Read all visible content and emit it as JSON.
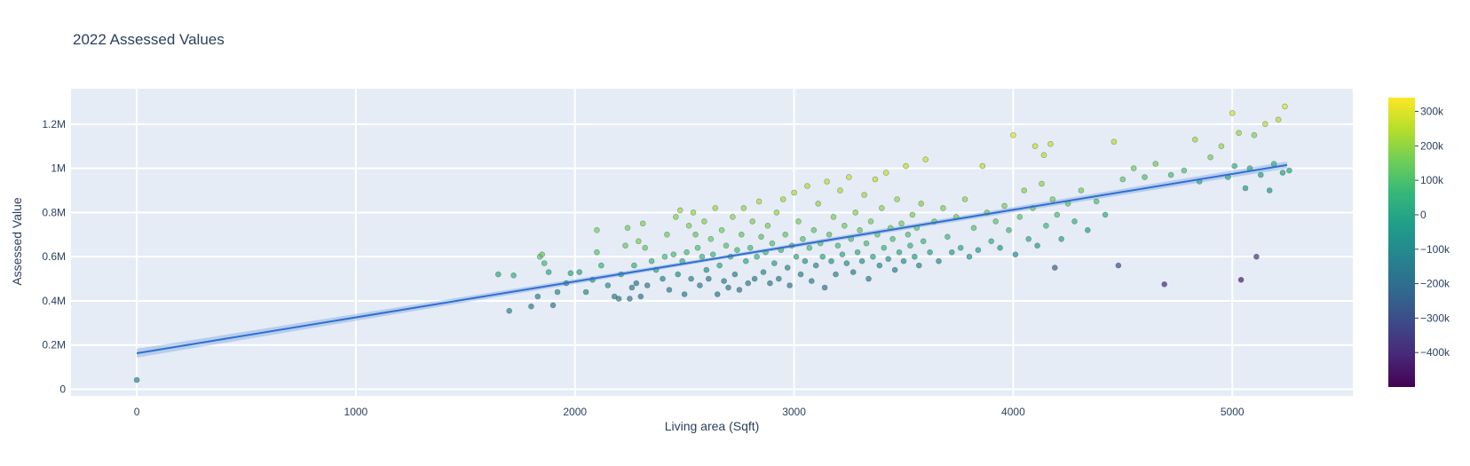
{
  "chart_data": {
    "type": "scatter",
    "title": "2022 Assessed Values",
    "xlabel": "Living area (Sqft)",
    "ylabel": "Assessed Value",
    "xlim": [
      -300,
      5550
    ],
    "ylim": [
      -30000,
      1360000
    ],
    "x_ticks": [
      0,
      1000,
      2000,
      3000,
      4000,
      5000
    ],
    "x_tick_labels": [
      "0",
      "1000",
      "2000",
      "3000",
      "4000",
      "5000"
    ],
    "y_ticks": [
      0,
      200000,
      400000,
      600000,
      800000,
      1000000,
      1200000
    ],
    "y_tick_labels": [
      "0",
      "0.2M",
      "0.4M",
      "0.6M",
      "0.8M",
      "1M",
      "1.2M"
    ],
    "grid": true,
    "trendline": {
      "type": "linear",
      "x0": 0,
      "y0": 163000,
      "x1": 5250,
      "y1": 1015000,
      "band_at_x0": 20000,
      "band_at_mid": 8000,
      "band_at_x1": 16000,
      "color": "#2f6fd1"
    },
    "colorbar": {
      "title": "",
      "colorscale": "Viridis",
      "cmin": -500000,
      "cmax": 340000,
      "ticks": [
        300000,
        200000,
        100000,
        0,
        -100000,
        -200000,
        -300000,
        -400000
      ],
      "tick_labels": [
        "300k",
        "200k",
        "100k",
        "0",
        "−100k",
        "−200k",
        "−300k",
        "−400k"
      ]
    },
    "points": [
      {
        "x": 0,
        "y": 42000,
        "c": -120000
      },
      {
        "x": 1650,
        "y": 520000,
        "c": 20000
      },
      {
        "x": 1700,
        "y": 355000,
        "c": -110000
      },
      {
        "x": 1720,
        "y": 515000,
        "c": 40000
      },
      {
        "x": 1800,
        "y": 375000,
        "c": -150000
      },
      {
        "x": 1830,
        "y": 420000,
        "c": -120000
      },
      {
        "x": 1840,
        "y": 600000,
        "c": 120000
      },
      {
        "x": 1850,
        "y": 610000,
        "c": 130000
      },
      {
        "x": 1860,
        "y": 570000,
        "c": 80000
      },
      {
        "x": 1880,
        "y": 530000,
        "c": 20000
      },
      {
        "x": 1900,
        "y": 380000,
        "c": -160000
      },
      {
        "x": 1920,
        "y": 440000,
        "c": -90000
      },
      {
        "x": 1960,
        "y": 480000,
        "c": -60000
      },
      {
        "x": 1980,
        "y": 525000,
        "c": 10000
      },
      {
        "x": 2020,
        "y": 530000,
        "c": 20000
      },
      {
        "x": 2050,
        "y": 440000,
        "c": -90000
      },
      {
        "x": 2080,
        "y": 495000,
        "c": -30000
      },
      {
        "x": 2100,
        "y": 720000,
        "c": 160000
      },
      {
        "x": 2100,
        "y": 620000,
        "c": 120000
      },
      {
        "x": 2120,
        "y": 560000,
        "c": 60000
      },
      {
        "x": 2150,
        "y": 470000,
        "c": -70000
      },
      {
        "x": 2180,
        "y": 420000,
        "c": -140000
      },
      {
        "x": 2200,
        "y": 410000,
        "c": -160000
      },
      {
        "x": 2210,
        "y": 520000,
        "c": 0
      },
      {
        "x": 2230,
        "y": 650000,
        "c": 140000
      },
      {
        "x": 2240,
        "y": 730000,
        "c": 150000
      },
      {
        "x": 2250,
        "y": 410000,
        "c": -170000
      },
      {
        "x": 2260,
        "y": 460000,
        "c": -140000
      },
      {
        "x": 2270,
        "y": 560000,
        "c": 50000
      },
      {
        "x": 2280,
        "y": 480000,
        "c": -150000
      },
      {
        "x": 2290,
        "y": 670000,
        "c": 160000
      },
      {
        "x": 2300,
        "y": 420000,
        "c": -170000
      },
      {
        "x": 2310,
        "y": 750000,
        "c": 170000
      },
      {
        "x": 2320,
        "y": 640000,
        "c": 130000
      },
      {
        "x": 2330,
        "y": 470000,
        "c": -160000
      },
      {
        "x": 2350,
        "y": 580000,
        "c": 60000
      },
      {
        "x": 2370,
        "y": 540000,
        "c": 0
      },
      {
        "x": 2400,
        "y": 500000,
        "c": -110000
      },
      {
        "x": 2410,
        "y": 600000,
        "c": 80000
      },
      {
        "x": 2420,
        "y": 700000,
        "c": 150000
      },
      {
        "x": 2430,
        "y": 450000,
        "c": -150000
      },
      {
        "x": 2450,
        "y": 610000,
        "c": 90000
      },
      {
        "x": 2460,
        "y": 780000,
        "c": 180000
      },
      {
        "x": 2470,
        "y": 520000,
        "c": -80000
      },
      {
        "x": 2480,
        "y": 810000,
        "c": 210000
      },
      {
        "x": 2490,
        "y": 580000,
        "c": 40000
      },
      {
        "x": 2500,
        "y": 430000,
        "c": -150000
      },
      {
        "x": 2510,
        "y": 620000,
        "c": 90000
      },
      {
        "x": 2520,
        "y": 740000,
        "c": 170000
      },
      {
        "x": 2530,
        "y": 500000,
        "c": -120000
      },
      {
        "x": 2540,
        "y": 800000,
        "c": 200000
      },
      {
        "x": 2550,
        "y": 700000,
        "c": 130000
      },
      {
        "x": 2560,
        "y": 640000,
        "c": 100000
      },
      {
        "x": 2570,
        "y": 470000,
        "c": -140000
      },
      {
        "x": 2580,
        "y": 600000,
        "c": 60000
      },
      {
        "x": 2590,
        "y": 760000,
        "c": 180000
      },
      {
        "x": 2600,
        "y": 540000,
        "c": -60000
      },
      {
        "x": 2610,
        "y": 500000,
        "c": -150000
      },
      {
        "x": 2620,
        "y": 680000,
        "c": 140000
      },
      {
        "x": 2630,
        "y": 610000,
        "c": 70000
      },
      {
        "x": 2640,
        "y": 820000,
        "c": 210000
      },
      {
        "x": 2650,
        "y": 430000,
        "c": -170000
      },
      {
        "x": 2660,
        "y": 560000,
        "c": 20000
      },
      {
        "x": 2670,
        "y": 720000,
        "c": 150000
      },
      {
        "x": 2680,
        "y": 490000,
        "c": -140000
      },
      {
        "x": 2690,
        "y": 650000,
        "c": 110000
      },
      {
        "x": 2700,
        "y": 460000,
        "c": -160000
      },
      {
        "x": 2710,
        "y": 600000,
        "c": 50000
      },
      {
        "x": 2720,
        "y": 780000,
        "c": 190000
      },
      {
        "x": 2730,
        "y": 520000,
        "c": -130000
      },
      {
        "x": 2740,
        "y": 630000,
        "c": 80000
      },
      {
        "x": 2750,
        "y": 450000,
        "c": -170000
      },
      {
        "x": 2760,
        "y": 700000,
        "c": 130000
      },
      {
        "x": 2770,
        "y": 820000,
        "c": 200000
      },
      {
        "x": 2780,
        "y": 580000,
        "c": 20000
      },
      {
        "x": 2790,
        "y": 480000,
        "c": -150000
      },
      {
        "x": 2800,
        "y": 640000,
        "c": 90000
      },
      {
        "x": 2810,
        "y": 760000,
        "c": 170000
      },
      {
        "x": 2820,
        "y": 500000,
        "c": -140000
      },
      {
        "x": 2830,
        "y": 600000,
        "c": 40000
      },
      {
        "x": 2840,
        "y": 850000,
        "c": 230000
      },
      {
        "x": 2850,
        "y": 690000,
        "c": 120000
      },
      {
        "x": 2860,
        "y": 530000,
        "c": -110000
      },
      {
        "x": 2870,
        "y": 620000,
        "c": 70000
      },
      {
        "x": 2880,
        "y": 740000,
        "c": 160000
      },
      {
        "x": 2890,
        "y": 480000,
        "c": -150000
      },
      {
        "x": 2900,
        "y": 660000,
        "c": 100000
      },
      {
        "x": 2910,
        "y": 570000,
        "c": -20000
      },
      {
        "x": 2920,
        "y": 800000,
        "c": 190000
      },
      {
        "x": 2930,
        "y": 500000,
        "c": -140000
      },
      {
        "x": 2940,
        "y": 630000,
        "c": 70000
      },
      {
        "x": 2950,
        "y": 860000,
        "c": 220000
      },
      {
        "x": 2960,
        "y": 700000,
        "c": 130000
      },
      {
        "x": 2970,
        "y": 550000,
        "c": -90000
      },
      {
        "x": 2980,
        "y": 470000,
        "c": -160000
      },
      {
        "x": 2990,
        "y": 650000,
        "c": 90000
      },
      {
        "x": 3000,
        "y": 890000,
        "c": 230000
      },
      {
        "x": 3010,
        "y": 600000,
        "c": 20000
      },
      {
        "x": 3020,
        "y": 760000,
        "c": 160000
      },
      {
        "x": 3030,
        "y": 520000,
        "c": -120000
      },
      {
        "x": 3040,
        "y": 680000,
        "c": 110000
      },
      {
        "x": 3050,
        "y": 580000,
        "c": -40000
      },
      {
        "x": 3060,
        "y": 920000,
        "c": 240000
      },
      {
        "x": 3070,
        "y": 640000,
        "c": 80000
      },
      {
        "x": 3080,
        "y": 490000,
        "c": -150000
      },
      {
        "x": 3090,
        "y": 720000,
        "c": 130000
      },
      {
        "x": 3100,
        "y": 560000,
        "c": -100000
      },
      {
        "x": 3110,
        "y": 840000,
        "c": 200000
      },
      {
        "x": 3120,
        "y": 660000,
        "c": 100000
      },
      {
        "x": 3130,
        "y": 600000,
        "c": 10000
      },
      {
        "x": 3140,
        "y": 460000,
        "c": -170000
      },
      {
        "x": 3150,
        "y": 940000,
        "c": 250000
      },
      {
        "x": 3160,
        "y": 700000,
        "c": 120000
      },
      {
        "x": 3170,
        "y": 580000,
        "c": -50000
      },
      {
        "x": 3180,
        "y": 780000,
        "c": 170000
      },
      {
        "x": 3190,
        "y": 520000,
        "c": -130000
      },
      {
        "x": 3200,
        "y": 650000,
        "c": 80000
      },
      {
        "x": 3210,
        "y": 900000,
        "c": 230000
      },
      {
        "x": 3220,
        "y": 610000,
        "c": 20000
      },
      {
        "x": 3230,
        "y": 740000,
        "c": 150000
      },
      {
        "x": 3240,
        "y": 570000,
        "c": -80000
      },
      {
        "x": 3250,
        "y": 960000,
        "c": 270000
      },
      {
        "x": 3260,
        "y": 680000,
        "c": 100000
      },
      {
        "x": 3270,
        "y": 530000,
        "c": -140000
      },
      {
        "x": 3280,
        "y": 800000,
        "c": 180000
      },
      {
        "x": 3290,
        "y": 620000,
        "c": 30000
      },
      {
        "x": 3300,
        "y": 720000,
        "c": 130000
      },
      {
        "x": 3310,
        "y": 580000,
        "c": -70000
      },
      {
        "x": 3320,
        "y": 880000,
        "c": 220000
      },
      {
        "x": 3330,
        "y": 660000,
        "c": 90000
      },
      {
        "x": 3340,
        "y": 500000,
        "c": -150000
      },
      {
        "x": 3350,
        "y": 760000,
        "c": 160000
      },
      {
        "x": 3360,
        "y": 600000,
        "c": 0
      },
      {
        "x": 3370,
        "y": 950000,
        "c": 260000
      },
      {
        "x": 3380,
        "y": 700000,
        "c": 110000
      },
      {
        "x": 3390,
        "y": 560000,
        "c": -100000
      },
      {
        "x": 3400,
        "y": 820000,
        "c": 190000
      },
      {
        "x": 3410,
        "y": 640000,
        "c": 60000
      },
      {
        "x": 3420,
        "y": 980000,
        "c": 270000
      },
      {
        "x": 3430,
        "y": 590000,
        "c": -60000
      },
      {
        "x": 3440,
        "y": 730000,
        "c": 140000
      },
      {
        "x": 3450,
        "y": 680000,
        "c": 90000
      },
      {
        "x": 3460,
        "y": 540000,
        "c": -130000
      },
      {
        "x": 3470,
        "y": 860000,
        "c": 200000
      },
      {
        "x": 3480,
        "y": 620000,
        "c": 20000
      },
      {
        "x": 3490,
        "y": 750000,
        "c": 150000
      },
      {
        "x": 3500,
        "y": 580000,
        "c": -80000
      },
      {
        "x": 3510,
        "y": 1010000,
        "c": 260000
      },
      {
        "x": 3520,
        "y": 700000,
        "c": 100000
      },
      {
        "x": 3530,
        "y": 650000,
        "c": 50000
      },
      {
        "x": 3540,
        "y": 790000,
        "c": 170000
      },
      {
        "x": 3550,
        "y": 600000,
        "c": -30000
      },
      {
        "x": 3560,
        "y": 730000,
        "c": 120000
      },
      {
        "x": 3570,
        "y": 560000,
        "c": -110000
      },
      {
        "x": 3580,
        "y": 840000,
        "c": 180000
      },
      {
        "x": 3590,
        "y": 670000,
        "c": 60000
      },
      {
        "x": 3600,
        "y": 1040000,
        "c": 270000
      },
      {
        "x": 3620,
        "y": 620000,
        "c": -10000
      },
      {
        "x": 3640,
        "y": 760000,
        "c": 140000
      },
      {
        "x": 3660,
        "y": 580000,
        "c": -90000
      },
      {
        "x": 3680,
        "y": 820000,
        "c": 170000
      },
      {
        "x": 3700,
        "y": 690000,
        "c": 70000
      },
      {
        "x": 3720,
        "y": 620000,
        "c": -20000
      },
      {
        "x": 3740,
        "y": 780000,
        "c": 150000
      },
      {
        "x": 3760,
        "y": 640000,
        "c": 10000
      },
      {
        "x": 3780,
        "y": 860000,
        "c": 190000
      },
      {
        "x": 3800,
        "y": 600000,
        "c": -60000
      },
      {
        "x": 3820,
        "y": 730000,
        "c": 110000
      },
      {
        "x": 3840,
        "y": 630000,
        "c": -20000
      },
      {
        "x": 3860,
        "y": 1010000,
        "c": 250000
      },
      {
        "x": 3880,
        "y": 800000,
        "c": 150000
      },
      {
        "x": 3900,
        "y": 670000,
        "c": 40000
      },
      {
        "x": 3920,
        "y": 760000,
        "c": 120000
      },
      {
        "x": 3940,
        "y": 640000,
        "c": -30000
      },
      {
        "x": 3960,
        "y": 830000,
        "c": 160000
      },
      {
        "x": 3980,
        "y": 720000,
        "c": 80000
      },
      {
        "x": 4000,
        "y": 1150000,
        "c": 290000
      },
      {
        "x": 4010,
        "y": 610000,
        "c": -80000
      },
      {
        "x": 4030,
        "y": 780000,
        "c": 120000
      },
      {
        "x": 4050,
        "y": 900000,
        "c": 180000
      },
      {
        "x": 4070,
        "y": 680000,
        "c": 20000
      },
      {
        "x": 4090,
        "y": 820000,
        "c": 140000
      },
      {
        "x": 4100,
        "y": 1100000,
        "c": 270000
      },
      {
        "x": 4110,
        "y": 650000,
        "c": -40000
      },
      {
        "x": 4130,
        "y": 930000,
        "c": 190000
      },
      {
        "x": 4140,
        "y": 1060000,
        "c": 250000
      },
      {
        "x": 4150,
        "y": 740000,
        "c": 70000
      },
      {
        "x": 4170,
        "y": 1110000,
        "c": 260000
      },
      {
        "x": 4180,
        "y": 860000,
        "c": 150000
      },
      {
        "x": 4190,
        "y": 550000,
        "c": -240000
      },
      {
        "x": 4200,
        "y": 790000,
        "c": 100000
      },
      {
        "x": 4220,
        "y": 680000,
        "c": -10000
      },
      {
        "x": 4250,
        "y": 840000,
        "c": 120000
      },
      {
        "x": 4280,
        "y": 760000,
        "c": 40000
      },
      {
        "x": 4310,
        "y": 900000,
        "c": 150000
      },
      {
        "x": 4340,
        "y": 720000,
        "c": -30000
      },
      {
        "x": 4380,
        "y": 850000,
        "c": 100000
      },
      {
        "x": 4420,
        "y": 790000,
        "c": 30000
      },
      {
        "x": 4460,
        "y": 1120000,
        "c": 250000
      },
      {
        "x": 4480,
        "y": 560000,
        "c": -300000
      },
      {
        "x": 4500,
        "y": 950000,
        "c": 130000
      },
      {
        "x": 4550,
        "y": 1000000,
        "c": 140000
      },
      {
        "x": 4600,
        "y": 960000,
        "c": 100000
      },
      {
        "x": 4650,
        "y": 1020000,
        "c": 150000
      },
      {
        "x": 4690,
        "y": 475000,
        "c": -410000
      },
      {
        "x": 4720,
        "y": 970000,
        "c": 90000
      },
      {
        "x": 4780,
        "y": 990000,
        "c": 100000
      },
      {
        "x": 4830,
        "y": 1130000,
        "c": 220000
      },
      {
        "x": 4850,
        "y": 940000,
        "c": 30000
      },
      {
        "x": 4900,
        "y": 1050000,
        "c": 160000
      },
      {
        "x": 4950,
        "y": 1100000,
        "c": 210000
      },
      {
        "x": 4980,
        "y": 960000,
        "c": 20000
      },
      {
        "x": 5000,
        "y": 1250000,
        "c": 280000
      },
      {
        "x": 5010,
        "y": 1010000,
        "c": 40000
      },
      {
        "x": 5030,
        "y": 1160000,
        "c": 210000
      },
      {
        "x": 5040,
        "y": 495000,
        "c": -440000
      },
      {
        "x": 5060,
        "y": 910000,
        "c": -40000
      },
      {
        "x": 5080,
        "y": 1000000,
        "c": 20000
      },
      {
        "x": 5100,
        "y": 1150000,
        "c": 180000
      },
      {
        "x": 5110,
        "y": 600000,
        "c": -380000
      },
      {
        "x": 5130,
        "y": 970000,
        "c": -10000
      },
      {
        "x": 5150,
        "y": 1200000,
        "c": 240000
      },
      {
        "x": 5170,
        "y": 900000,
        "c": -60000
      },
      {
        "x": 5190,
        "y": 1020000,
        "c": 40000
      },
      {
        "x": 5210,
        "y": 1220000,
        "c": 250000
      },
      {
        "x": 5230,
        "y": 980000,
        "c": -10000
      },
      {
        "x": 5240,
        "y": 1280000,
        "c": 290000
      },
      {
        "x": 5260,
        "y": 990000,
        "c": 0
      }
    ]
  }
}
